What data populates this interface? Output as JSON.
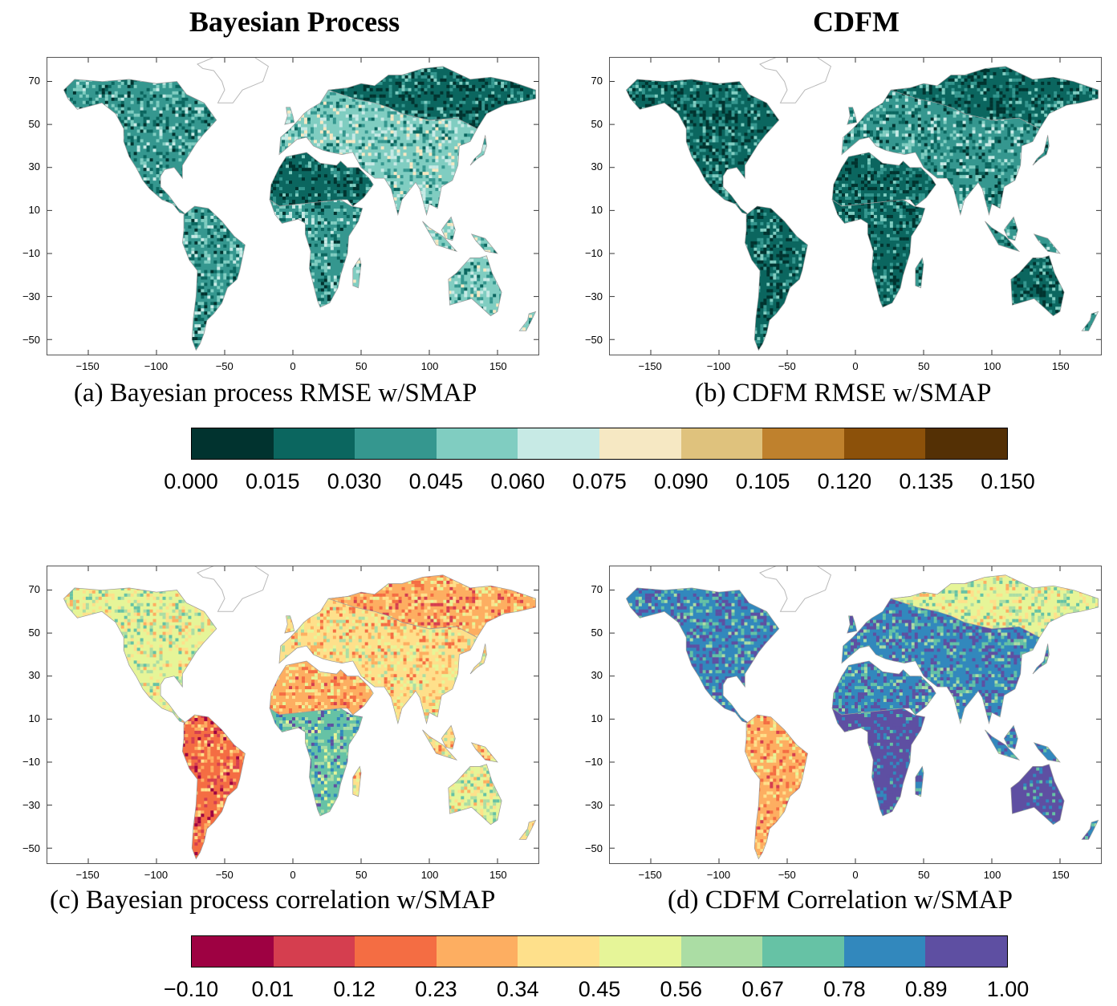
{
  "column_titles": {
    "left": "Bayesian Process",
    "right": "CDFM"
  },
  "palettes": {
    "rmse": [
      "#01332f",
      "#0b665f",
      "#35978f",
      "#80cdc1",
      "#c7eae5",
      "#f6e8c3",
      "#dfc27d",
      "#bf812d",
      "#8c510a",
      "#543005"
    ],
    "correlation": [
      "#9e0142",
      "#d53e4f",
      "#f46d43",
      "#fdae61",
      "#fee08b",
      "#e6f598",
      "#abdda4",
      "#66c2a5",
      "#3288bd",
      "#5e4fa2"
    ]
  },
  "colorbars": {
    "rmse": {
      "labels": [
        "0.000",
        "0.015",
        "0.030",
        "0.045",
        "0.060",
        "0.075",
        "0.090",
        "0.105",
        "0.120",
        "0.135",
        "0.150"
      ]
    },
    "correlation": {
      "labels": [
        "−0.10",
        "0.01",
        "0.12",
        "0.23",
        "0.34",
        "0.45",
        "0.56",
        "0.67",
        "0.78",
        "0.89",
        "1.00"
      ]
    }
  },
  "axes": {
    "x_ticks": [
      "−150",
      "−100",
      "−50",
      "0",
      "50",
      "100",
      "150"
    ],
    "y_ticks": [
      "70",
      "50",
      "30",
      "10",
      "−10",
      "−30",
      "−50"
    ]
  },
  "chart_data": [
    {
      "type": "heatmap",
      "panel": "a",
      "caption": "(a) Bayesian process RMSE w/SMAP",
      "scale": "rmse",
      "xlim": [
        -180,
        180
      ],
      "ylim": [
        -57,
        81
      ],
      "dominant_classes": {
        "north_america": 2,
        "south_america": 2,
        "sahara_arabia": 1,
        "europe_asia": 3,
        "africa_south": 2,
        "australia": 3,
        "siberia": 1
      }
    },
    {
      "type": "heatmap",
      "panel": "b",
      "caption": "(b) CDFM RMSE w/SMAP",
      "scale": "rmse",
      "xlim": [
        -180,
        180
      ],
      "ylim": [
        -57,
        81
      ],
      "dominant_classes": {
        "north_america": 1,
        "south_america": 1,
        "sahara_arabia": 1,
        "europe_asia": 2,
        "africa_south": 1,
        "australia": 1,
        "siberia": 1
      }
    },
    {
      "type": "heatmap",
      "panel": "c",
      "caption": "(c) Bayesian process correlation w/SMAP",
      "scale": "correlation",
      "xlim": [
        -180,
        180
      ],
      "ylim": [
        -57,
        81
      ],
      "dominant_classes": {
        "north_america": 5,
        "south_america": 2,
        "sahara_arabia": 3,
        "europe_asia": 4,
        "africa_south": 7,
        "australia": 5,
        "siberia": 3
      }
    },
    {
      "type": "heatmap",
      "panel": "d",
      "caption": "(d) CDFM Correlation w/SMAP",
      "scale": "correlation",
      "xlim": [
        -180,
        180
      ],
      "ylim": [
        -57,
        81
      ],
      "dominant_classes": {
        "north_america": 8,
        "south_america": 3,
        "sahara_arabia": 8,
        "europe_asia": 8,
        "africa_south": 9,
        "australia": 9,
        "siberia": 5
      }
    }
  ]
}
